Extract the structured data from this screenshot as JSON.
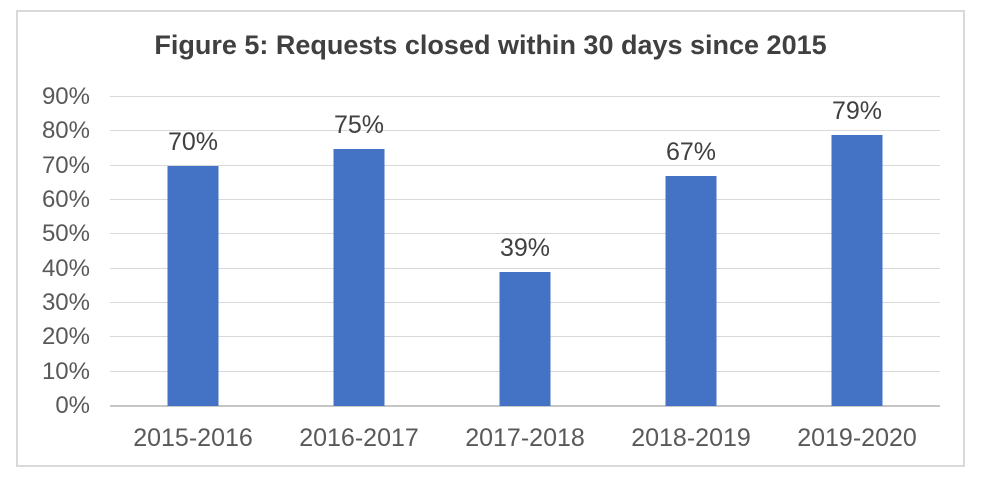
{
  "chart_data": {
    "type": "bar",
    "title": "Figure 5: Requests closed within 30 days since 2015",
    "categories": [
      "2015-2016",
      "2016-2017",
      "2017-2018",
      "2018-2019",
      "2019-2020"
    ],
    "values": [
      70,
      75,
      39,
      67,
      79
    ],
    "value_labels": [
      "70%",
      "75%",
      "39%",
      "67%",
      "79%"
    ],
    "xlabel": "",
    "ylabel": "",
    "ylim": [
      0,
      90
    ],
    "ytick_step": 10,
    "ytick_labels": [
      "0%",
      "10%",
      "20%",
      "30%",
      "40%",
      "50%",
      "60%",
      "70%",
      "80%",
      "90%"
    ],
    "grid": true,
    "legend": "none",
    "colors": {
      "bar": "#4472c4",
      "gridline": "#d9d9d9",
      "axis_line": "#c6c6c6",
      "frame_border": "#d9d9d9",
      "title_text": "#404040",
      "tick_text": "#595959",
      "data_label_text": "#404040",
      "background": "#ffffff"
    }
  }
}
